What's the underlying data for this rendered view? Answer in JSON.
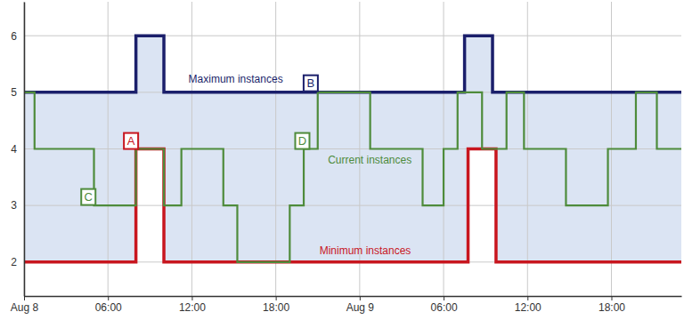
{
  "chart_data": {
    "type": "line",
    "line_style": "step",
    "grid": true,
    "x": [
      0,
      0.75,
      5,
      8,
      10,
      11.25,
      14.25,
      15.25,
      19,
      20,
      21,
      24.75,
      28.5,
      30,
      31,
      31.5,
      31.75,
      32.75,
      33.5,
      33.75,
      34.5,
      35.75,
      38.75,
      41.75,
      43.75,
      45.25,
      47
    ],
    "xlim": [
      0,
      47
    ],
    "xticks": [
      {
        "value": 0,
        "label": "Aug 8"
      },
      {
        "value": 6,
        "label": "06:00"
      },
      {
        "value": 12,
        "label": "12:00"
      },
      {
        "value": 18,
        "label": "18:00"
      },
      {
        "value": 24,
        "label": "Aug 9"
      },
      {
        "value": 30,
        "label": "06:00"
      },
      {
        "value": 36,
        "label": "12:00"
      },
      {
        "value": 42,
        "label": "18:00"
      }
    ],
    "ylim": [
      1.4,
      6.6
    ],
    "yticks": [
      2,
      3,
      4,
      5,
      6
    ],
    "series": [
      {
        "name": "Maximum instances",
        "color": "#1b1f6b",
        "values": [
          5,
          5,
          5,
          6,
          5,
          5,
          5,
          5,
          5,
          5,
          5,
          5,
          5,
          5,
          5,
          6,
          6,
          6,
          5,
          5,
          5,
          5,
          5,
          5,
          5,
          5,
          5
        ]
      },
      {
        "name": "Minimum instances",
        "color": "#c8161f",
        "values": [
          2,
          2,
          2,
          4,
          2,
          2,
          2,
          2,
          2,
          2,
          2,
          2,
          2,
          2,
          2,
          2,
          4,
          4,
          4,
          2,
          2,
          2,
          2,
          2,
          2,
          2,
          2
        ]
      },
      {
        "name": "Current instances",
        "color": "#4e8b3b",
        "values": [
          5,
          4,
          3,
          4,
          3,
          4,
          3,
          2,
          3,
          4,
          5,
          4,
          3,
          4,
          5,
          5,
          5,
          4,
          4,
          4,
          5,
          4,
          3,
          4,
          5,
          4,
          4
        ]
      }
    ],
    "annotations": [
      {
        "text": "A",
        "x": 7.65,
        "y": 4.14,
        "color": "#c8161f"
      },
      {
        "text": "B",
        "x": 20.5,
        "y": 5.16,
        "color": "#1b1f6b"
      },
      {
        "text": "C",
        "x": 4.6,
        "y": 3.15,
        "color": "#4e8b3b"
      },
      {
        "text": "D",
        "x": 19.9,
        "y": 4.14,
        "color": "#4e8b3b"
      }
    ]
  }
}
